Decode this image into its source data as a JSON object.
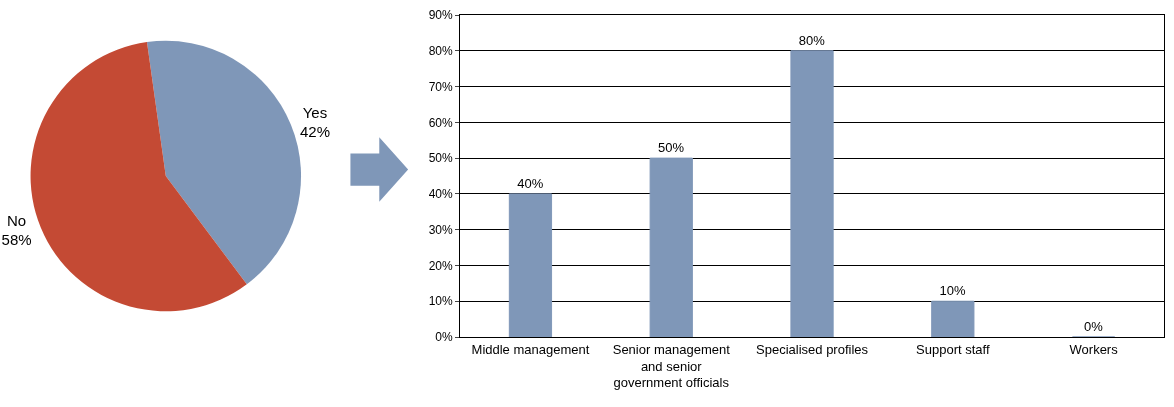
{
  "chart_data": [
    {
      "type": "pie",
      "categories": [
        "Yes",
        "No"
      ],
      "values": [
        42,
        58
      ],
      "colors": [
        "#7f97b8",
        "#c44a34"
      ],
      "value_labels": [
        "42%",
        "58%"
      ],
      "legend": false
    },
    {
      "type": "bar",
      "categories": [
        "Middle management",
        "Senior management and senior government officials",
        "Specialised profiles",
        "Support staff",
        "Workers"
      ],
      "values": [
        40,
        50,
        80,
        10,
        0
      ],
      "color": "#7f97b8",
      "value_labels": [
        "40%",
        "50%",
        "80%",
        "10%",
        "0%"
      ],
      "ylim": [
        0,
        90
      ],
      "yticks": [
        {
          "value": 0,
          "label": "0%"
        },
        {
          "value": 10,
          "label": "10%"
        },
        {
          "value": 20,
          "label": "20%"
        },
        {
          "value": 30,
          "label": "30%"
        },
        {
          "value": 40,
          "label": "40%"
        },
        {
          "value": 50,
          "label": "50%"
        },
        {
          "value": 60,
          "label": "60%"
        },
        {
          "value": 70,
          "label": "70%"
        },
        {
          "value": 80,
          "label": "80%"
        },
        {
          "value": 90,
          "label": "90%"
        }
      ],
      "grid": "y",
      "legend": false
    }
  ]
}
